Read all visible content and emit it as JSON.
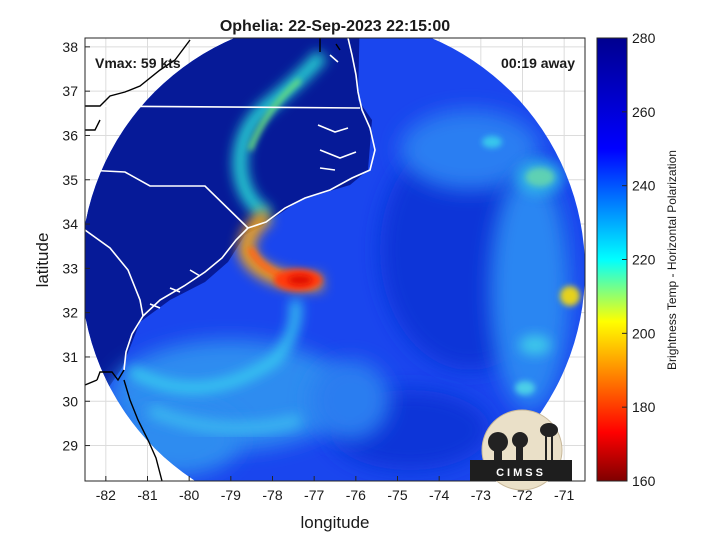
{
  "chart_data": {
    "type": "heatmap",
    "title": "Ophelia: 22-Sep-2023 22:15:00",
    "xlabel": "longitude",
    "ylabel": "latitude",
    "xlim": [
      -82.5,
      -70.5
    ],
    "ylim": [
      28.2,
      38.2
    ],
    "x_ticks": [
      -82,
      -81,
      -80,
      -79,
      -78,
      -77,
      -76,
      -75,
      -74,
      -73,
      -72,
      -71
    ],
    "y_ticks": [
      29,
      30,
      31,
      32,
      33,
      34,
      35,
      36,
      37,
      38
    ],
    "grid": true,
    "annotations": {
      "vmax": "Vmax: 59 kts",
      "time_offset": "00:19 away"
    },
    "colorbar": {
      "label": "Brightness Temp - Horizontal Polarization",
      "range": [
        160,
        280
      ],
      "ticks": [
        160,
        180,
        200,
        220,
        240,
        260,
        280
      ],
      "colormap": "jet",
      "colors": [
        "#7f0000",
        "#ff0000",
        "#ffff00",
        "#00ffff",
        "#0000ff",
        "#00008f"
      ]
    },
    "swath": {
      "center_lon": -76.5,
      "center_lat": 33.1,
      "background_value": 262
    },
    "features": [
      {
        "name": "storm core",
        "lon": -77.6,
        "lat": 32.7,
        "value": 180
      },
      {
        "name": "inner band",
        "lon": -78.5,
        "lat": 33.3,
        "value": 205
      },
      {
        "name": "northern rain band",
        "lon": -77.9,
        "lat": 35.4,
        "value": 225
      },
      {
        "name": "southern outer band",
        "lon": -78.0,
        "lat": 30.7,
        "value": 238
      },
      {
        "name": "east convection 1",
        "lon": -71.6,
        "lat": 35.0,
        "value": 218
      },
      {
        "name": "east convection 2",
        "lon": -70.9,
        "lat": 32.3,
        "value": 212
      },
      {
        "name": "east convection 3",
        "lon": -71.9,
        "lat": 30.9,
        "value": 232
      }
    ],
    "logo": "CIMSS"
  }
}
